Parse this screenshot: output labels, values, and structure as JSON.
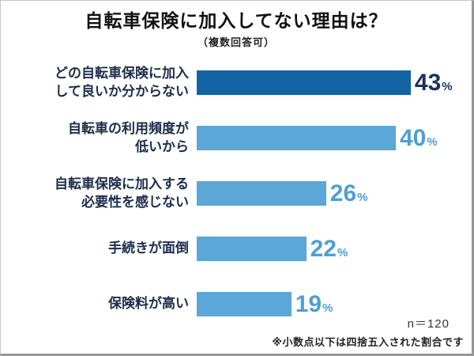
{
  "chart": {
    "title": "自転車保険に加入してない理由は？",
    "subtitle": "（複数回答可）",
    "sample_size": "n＝120",
    "footnote": "※小数点以下は四捨五入された割合です"
  },
  "chart_data": {
    "type": "bar",
    "orientation": "horizontal",
    "title": "自転車保険に加入してない理由は？",
    "subtitle": "（複数回答可）",
    "categories": [
      "どの自転車保険に加入して良いか分からない",
      "自転車の利用頻度が低いから",
      "自転車保険に加入する必要性を感じない",
      "手続きが面倒",
      "保険料が高い"
    ],
    "category_lines": [
      [
        "どの自転車保険に加入",
        "して良いか分からない"
      ],
      [
        "自転車の利用頻度が",
        "低いから"
      ],
      [
        "自転車保険に加入する",
        "必要性を感じない"
      ],
      [
        "手続きが面倒"
      ],
      [
        "保険料が高い"
      ]
    ],
    "values": [
      43,
      40,
      26,
      22,
      19
    ],
    "unit": "%",
    "xlim": [
      0,
      50
    ],
    "legend": "none",
    "grid": false,
    "sample_size": "n＝120",
    "note": "※小数点以下は四捨五入された割合です",
    "bar_colors": [
      "#1264a4",
      "#5ba7d7",
      "#5ba7d7",
      "#5ba7d7",
      "#5ba7d7"
    ],
    "value_colors": [
      "#17345f",
      "#4e9fd3",
      "#4e9fd3",
      "#4e9fd3",
      "#4e9fd3"
    ]
  }
}
